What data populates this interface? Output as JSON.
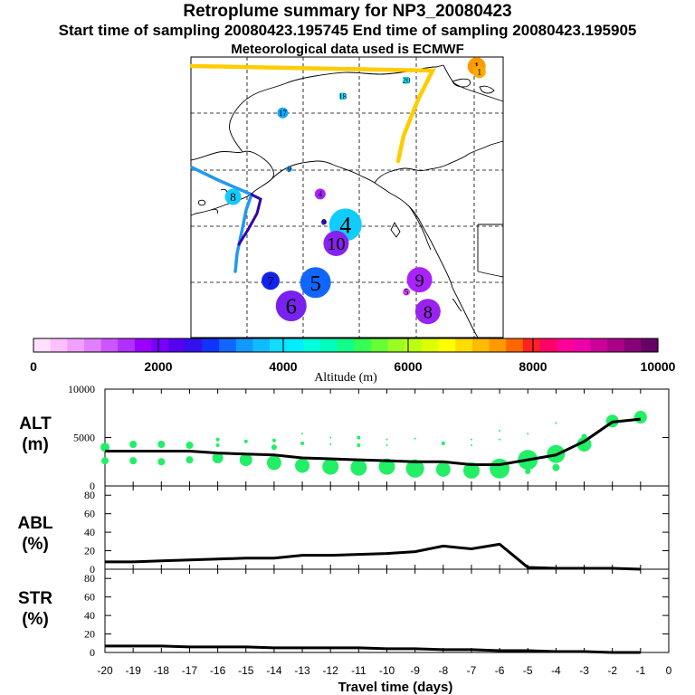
{
  "header": {
    "title": "Retroplume summary for NP3_20080423",
    "sampling_line": "Start time of sampling 20080423.195745     End time of sampling 20080423.195905",
    "met_line": "Meteorological data used is ECMWF"
  },
  "colors": {
    "axis": "#000000",
    "alt_bubble": "#22ee66",
    "alt_line": "#000000",
    "path_yellow": "#ffcc00",
    "path_blue": "#2299ee",
    "path_navy": "#3300aa"
  },
  "chart_data": [
    {
      "type": "map",
      "title": "Retroplume summary for NP3_20080423",
      "colorbar": {
        "label": "Altitude (m)",
        "ticks": [
          "0",
          "2000",
          "4000",
          "6000",
          "8000",
          "10000"
        ],
        "range": [
          0,
          10000
        ],
        "colors": [
          "#ffe0ff",
          "#ffc0ff",
          "#f0a0ff",
          "#e080ff",
          "#cc55ff",
          "#b030ff",
          "#9900ff",
          "#7700ff",
          "#5500ee",
          "#3311ee",
          "#1133ff",
          "#1166ff",
          "#1199ff",
          "#11bbff",
          "#11ddff",
          "#00eeff",
          "#00ffdd",
          "#00ffbb",
          "#11ff88",
          "#33ff55",
          "#66ff33",
          "#99ff22",
          "#bbff11",
          "#ddff00",
          "#ffff00",
          "#ffdd00",
          "#ffbb00",
          "#ff9900",
          "#ff6600",
          "#ff2222",
          "#ff0066",
          "#ff0099",
          "#ee00aa",
          "#cc0099",
          "#aa0088",
          "#880077",
          "#660066"
        ]
      },
      "markers": [
        {
          "label": "1",
          "day": -1,
          "lon": -134.5,
          "lat": 69.5,
          "altitude_m": 7000,
          "color": "#ff9900",
          "size": 10
        },
        {
          "label": "1",
          "day": -1,
          "lon": -134.2,
          "lat": 68.9,
          "altitude_m": 7000,
          "color": "#ffaa00",
          "size": 7
        },
        {
          "label": "4",
          "day": -4,
          "lon": -148.5,
          "lat": 52.5,
          "altitude_m": 3200,
          "color": "#11ccff",
          "size": 18
        },
        {
          "label": "4",
          "day": -4,
          "lon": -151.2,
          "lat": 55.8,
          "altitude_m": 1800,
          "color": "#aa22ff",
          "size": 6
        },
        {
          "label": "5",
          "day": -5,
          "lon": -151.7,
          "lat": 46.3,
          "altitude_m": 2500,
          "color": "#1166ff",
          "size": 17
        },
        {
          "label": "5",
          "day": -5,
          "lon": -142.0,
          "lat": 45.3,
          "altitude_m": 1200,
          "color": "#cc44ff",
          "size": 4
        },
        {
          "label": "6",
          "day": -6,
          "lon": -154.3,
          "lat": 43.8,
          "altitude_m": 2100,
          "color": "#7722ee",
          "size": 17
        },
        {
          "label": "7",
          "day": -7,
          "lon": -156.5,
          "lat": 46.5,
          "altitude_m": 2300,
          "color": "#1122ee",
          "size": 10
        },
        {
          "label": "8",
          "day": -8,
          "lon": -139.7,
          "lat": 43.2,
          "altitude_m": 1700,
          "color": "#9922ee",
          "size": 14
        },
        {
          "label": "9",
          "day": -9,
          "lon": -140.6,
          "lat": 46.6,
          "altitude_m": 1500,
          "color": "#aa22ff",
          "size": 14
        },
        {
          "label": "9",
          "day": -9,
          "lon": -154.5,
          "lat": 58.5,
          "altitude_m": 3000,
          "color": "#1199ff",
          "size": 3
        },
        {
          "label": "9",
          "day": -9,
          "lon": -150.8,
          "lat": 52.8,
          "altitude_m": 2300,
          "color": "#3311ee",
          "size": 3
        },
        {
          "label": "10",
          "day": -10,
          "lon": -149.5,
          "lat": 50.5,
          "altitude_m": 1900,
          "color": "#8822ee",
          "size": 14
        },
        {
          "label": "17",
          "day": -17,
          "lon": -155.2,
          "lat": 64.5,
          "altitude_m": 3000,
          "color": "#11aaff",
          "size": 6
        },
        {
          "label": "18",
          "day": -18,
          "lon": -148.8,
          "lat": 66.3,
          "altitude_m": 3500,
          "color": "#11ddff",
          "size": 4
        },
        {
          "label": "20",
          "day": -20,
          "lon": -142.0,
          "lat": 68.0,
          "altitude_m": 3600,
          "color": "#00eeff",
          "size": 4
        },
        {
          "label": "8",
          "day": -8,
          "lon": -160.5,
          "lat": 55.5,
          "altitude_m": 3500,
          "color": "#11ccff",
          "size": 9
        }
      ]
    },
    {
      "type": "scatter+line",
      "ylabel": "ALT (m)",
      "ylim": [
        0,
        10000
      ],
      "yticks": [
        "0",
        "5000",
        "10000"
      ],
      "x": [
        -20,
        -19,
        -18,
        -17,
        -16,
        -15,
        -14,
        -13,
        -12,
        -11,
        -10,
        -9,
        -8,
        -7,
        -6,
        -5,
        -4,
        -3,
        -2,
        -1
      ],
      "median_altitude_m": [
        3600,
        3600,
        3600,
        3600,
        3400,
        3300,
        3200,
        2900,
        2800,
        2700,
        2600,
        2500,
        2500,
        2200,
        2200,
        2700,
        3200,
        4600,
        6600,
        6900
      ],
      "bubbles": [
        {
          "x": -20,
          "y": 4000,
          "r": 5
        },
        {
          "x": -20,
          "y": 2600,
          "r": 4
        },
        {
          "x": -19,
          "y": 4300,
          "r": 4
        },
        {
          "x": -19,
          "y": 2600,
          "r": 4
        },
        {
          "x": -18,
          "y": 4300,
          "r": 4
        },
        {
          "x": -18,
          "y": 2500,
          "r": 4
        },
        {
          "x": -17,
          "y": 4200,
          "r": 4
        },
        {
          "x": -17,
          "y": 2700,
          "r": 4
        },
        {
          "x": -16,
          "y": 4800,
          "r": 2
        },
        {
          "x": -16,
          "y": 4200,
          "r": 2
        },
        {
          "x": -16,
          "y": 2900,
          "r": 6
        },
        {
          "x": -15,
          "y": 4600,
          "r": 2
        },
        {
          "x": -15,
          "y": 2700,
          "r": 7
        },
        {
          "x": -14,
          "y": 4700,
          "r": 2
        },
        {
          "x": -14,
          "y": 4000,
          "r": 3
        },
        {
          "x": -14,
          "y": 2400,
          "r": 8
        },
        {
          "x": -13,
          "y": 5400,
          "r": 1
        },
        {
          "x": -13,
          "y": 4400,
          "r": 2
        },
        {
          "x": -13,
          "y": 2100,
          "r": 8
        },
        {
          "x": -12,
          "y": 5000,
          "r": 1
        },
        {
          "x": -12,
          "y": 4300,
          "r": 1
        },
        {
          "x": -12,
          "y": 2000,
          "r": 9
        },
        {
          "x": -11,
          "y": 5000,
          "r": 2
        },
        {
          "x": -11,
          "y": 4200,
          "r": 2
        },
        {
          "x": -11,
          "y": 1900,
          "r": 9
        },
        {
          "x": -10,
          "y": 4800,
          "r": 1
        },
        {
          "x": -10,
          "y": 4200,
          "r": 1
        },
        {
          "x": -10,
          "y": 2000,
          "r": 9
        },
        {
          "x": -9,
          "y": 4900,
          "r": 1
        },
        {
          "x": -9,
          "y": 1800,
          "r": 10
        },
        {
          "x": -8,
          "y": 4400,
          "r": 2
        },
        {
          "x": -8,
          "y": 1700,
          "r": 8
        },
        {
          "x": -7,
          "y": 4800,
          "r": 1
        },
        {
          "x": -7,
          "y": 4200,
          "r": 1
        },
        {
          "x": -7,
          "y": 1600,
          "r": 9
        },
        {
          "x": -6,
          "y": 5700,
          "r": 1
        },
        {
          "x": -6,
          "y": 4800,
          "r": 1
        },
        {
          "x": -6,
          "y": 1800,
          "r": 11
        },
        {
          "x": -5,
          "y": 5400,
          "r": 1
        },
        {
          "x": -5,
          "y": 2700,
          "r": 11
        },
        {
          "x": -5,
          "y": 1500,
          "r": 3
        },
        {
          "x": -4,
          "y": 6500,
          "r": 1
        },
        {
          "x": -4,
          "y": 3300,
          "r": 10
        },
        {
          "x": -4,
          "y": 1900,
          "r": 4
        },
        {
          "x": -3,
          "y": 4300,
          "r": 8
        },
        {
          "x": -3,
          "y": 5100,
          "r": 3
        },
        {
          "x": -2,
          "y": 6700,
          "r": 7
        },
        {
          "x": -1,
          "y": 7100,
          "r": 7
        },
        {
          "x": -1,
          "y": 7500,
          "r": 3
        }
      ]
    },
    {
      "type": "line",
      "ylabel": "ABL (%)",
      "ylim": [
        0,
        90
      ],
      "yticks": [
        "0",
        "20",
        "40",
        "60",
        "80"
      ],
      "x": [
        -20,
        -19,
        -18,
        -17,
        -16,
        -15,
        -14,
        -13,
        -12,
        -11,
        -10,
        -9,
        -8,
        -7,
        -6,
        -5,
        -4,
        -3,
        -2,
        -1
      ],
      "values": [
        8,
        8,
        9,
        10,
        11,
        12,
        12,
        15,
        15,
        16,
        17,
        19,
        25,
        22,
        27,
        2,
        1,
        1,
        1,
        0
      ]
    },
    {
      "type": "line",
      "ylabel": "STR (%)",
      "ylim": [
        0,
        90
      ],
      "yticks": [
        "0",
        "20",
        "40",
        "60",
        "80"
      ],
      "x": [
        -20,
        -19,
        -18,
        -17,
        -16,
        -15,
        -14,
        -13,
        -12,
        -11,
        -10,
        -9,
        -8,
        -7,
        -6,
        -5,
        -4,
        -3,
        -2,
        -1
      ],
      "values": [
        7,
        7,
        7,
        6,
        6,
        6,
        5,
        5,
        5,
        5,
        4,
        4,
        3,
        3,
        2,
        2,
        1,
        1,
        0,
        0
      ],
      "xlabel": "Travel time (days)",
      "xticks": [
        "-20",
        "-19",
        "-18",
        "-17",
        "-16",
        "-15",
        "-14",
        "-13",
        "-12",
        "-11",
        "-10",
        "-9",
        "-8",
        "-7",
        "-6",
        "-5",
        "-4",
        "-3",
        "-2",
        "-1",
        "0"
      ]
    }
  ]
}
